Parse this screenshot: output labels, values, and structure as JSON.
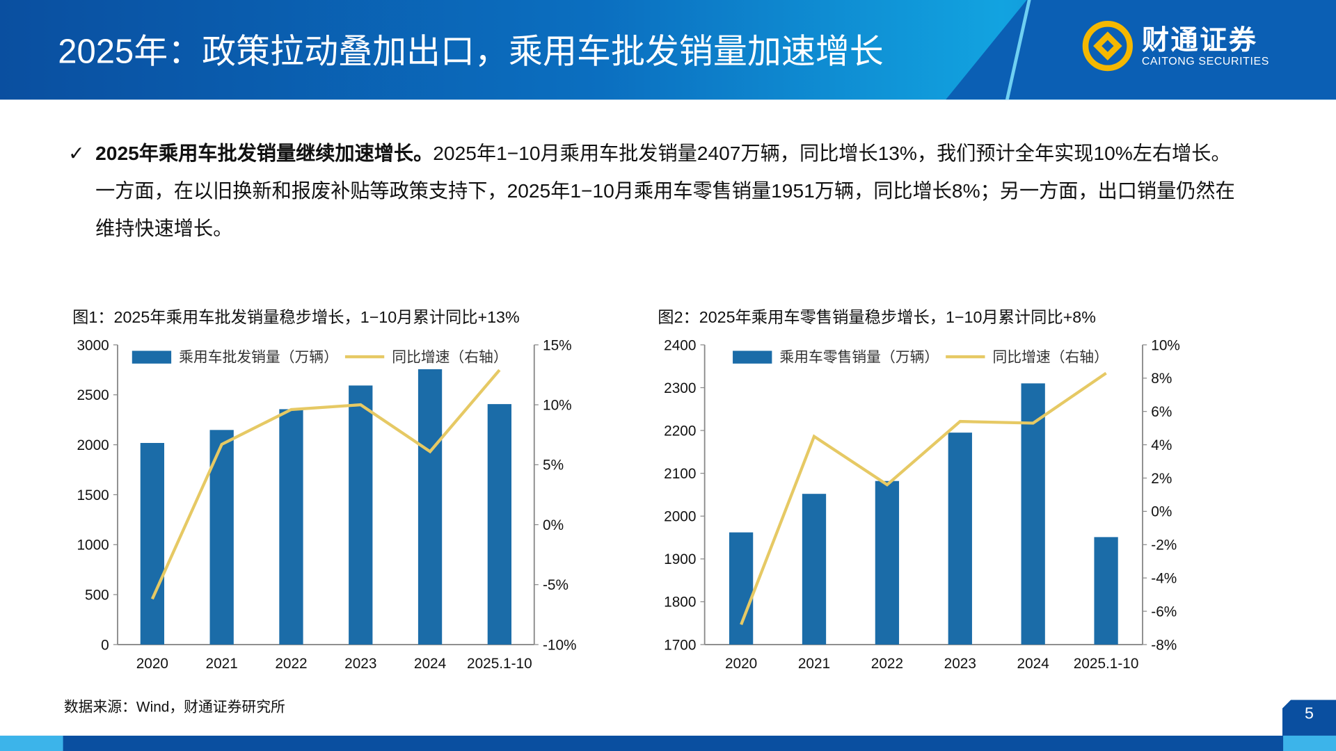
{
  "header": {
    "title": "2025年：政策拉动叠加出口，乘用车批发销量加速增长",
    "logo_cn": "财通证券",
    "logo_en": "CAITONG SECURITIES",
    "accent": "#0a4fa0"
  },
  "bullet": {
    "icon": "check-icon",
    "bold": "2025年乘用车批发销量继续加速增长。",
    "text": "2025年1−10月乘用车批发销量2407万辆，同比增长13%，我们预计全年实现10%左右增长。一方面，在以旧换新和报废补贴等政策支持下，2025年1−10月乘用车零售销量1951万辆，同比增长8%；另一方面，出口销量仍然在维持快速增长。"
  },
  "source": "数据来源：Wind，财通证券研究所",
  "page_number": "5",
  "chart_data": [
    {
      "type": "bar+line",
      "title": "图1：2025年乘用车批发销量稳步增长，1−10月累计同比+13%",
      "categories": [
        "2020",
        "2021",
        "2022",
        "2023",
        "2024",
        "2025.1-10"
      ],
      "series": [
        {
          "name": "乘用车批发销量（万辆）",
          "type": "bar",
          "axis": "left",
          "color": "#1b6ca8",
          "values": [
            2018,
            2148,
            2356,
            2593,
            2756,
            2407
          ]
        },
        {
          "name": "同比增速（右轴）",
          "type": "line",
          "axis": "right",
          "color": "#e6c964",
          "values": [
            -6.2,
            6.7,
            9.6,
            10.0,
            6.1,
            12.9
          ]
        }
      ],
      "ylim": [
        0,
        3000
      ],
      "yticks": [
        "0",
        "500",
        "1000",
        "1500",
        "2000",
        "2500",
        "3000"
      ],
      "y2lim": [
        -10,
        15
      ],
      "y2ticks": [
        "-10%",
        "-5%",
        "0%",
        "5%",
        "10%",
        "15%"
      ],
      "legend": "top",
      "grid": false
    },
    {
      "type": "bar+line",
      "title": "图2：2025年乘用车零售销量稳步增长，1−10月累计同比+8%",
      "categories": [
        "2020",
        "2021",
        "2022",
        "2023",
        "2024",
        "2025.1-10"
      ],
      "series": [
        {
          "name": "乘用车零售销量（万辆）",
          "type": "bar",
          "axis": "left",
          "color": "#1b6ca8",
          "values": [
            1962,
            2052,
            2082,
            2195,
            2310,
            1951
          ]
        },
        {
          "name": "同比增速（右轴）",
          "type": "line",
          "axis": "right",
          "color": "#e6c964",
          "values": [
            -6.8,
            4.5,
            1.6,
            5.4,
            5.3,
            8.3
          ]
        }
      ],
      "ylim": [
        1700,
        2400
      ],
      "yticks": [
        "1700",
        "1800",
        "1900",
        "2000",
        "2100",
        "2200",
        "2300",
        "2400"
      ],
      "y2lim": [
        -8,
        10
      ],
      "y2ticks": [
        "-8%",
        "-6%",
        "-4%",
        "-2%",
        "0%",
        "2%",
        "4%",
        "6%",
        "8%",
        "10%"
      ],
      "legend": "top",
      "grid": false
    }
  ]
}
